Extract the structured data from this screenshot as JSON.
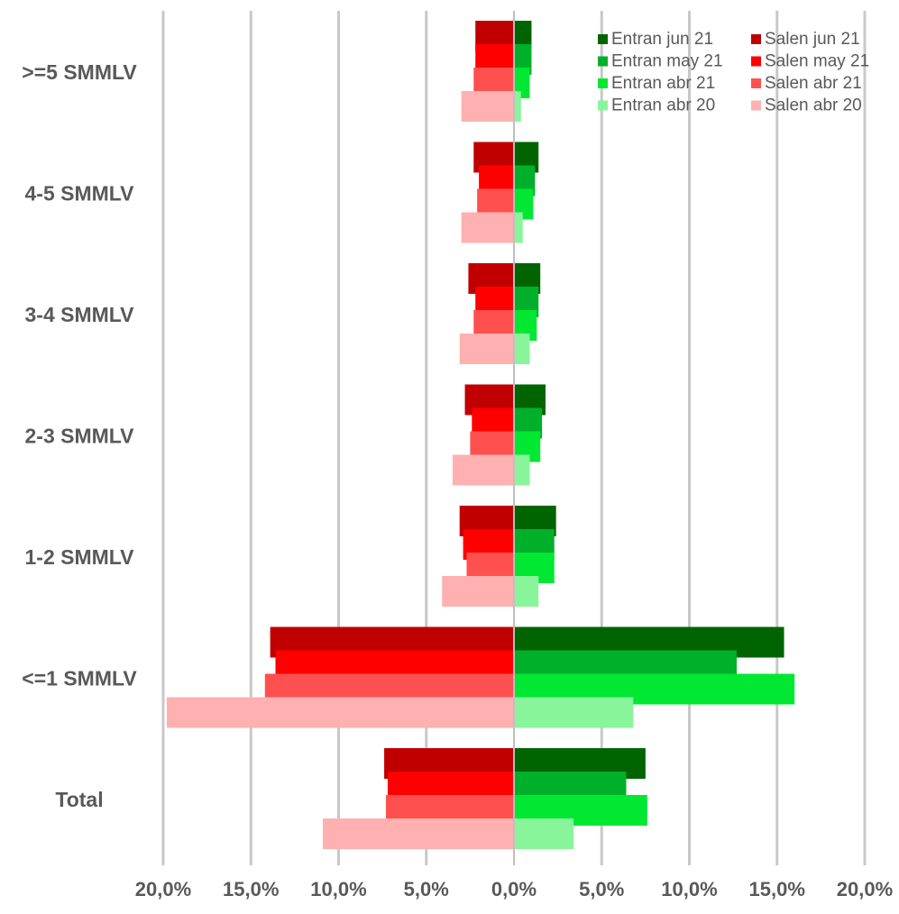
{
  "chart_data": {
    "type": "bar",
    "orientation": "horizontal",
    "categories": [
      ">=5 SMMLV",
      "4-5 SMMLV",
      "3-4 SMMLV",
      "2-3 SMMLV",
      "1-2 SMMLV",
      "<=1 SMMLV",
      "Total"
    ],
    "series": [
      {
        "name": "Entran jun 21",
        "color": "#006400",
        "values": [
          1.0,
          1.4,
          1.5,
          1.8,
          2.4,
          15.4,
          7.5
        ]
      },
      {
        "name": "Entran may 21",
        "color": "#00B02A",
        "values": [
          1.0,
          1.2,
          1.4,
          1.6,
          2.3,
          12.7,
          6.4
        ]
      },
      {
        "name": "Entran abr 21",
        "color": "#00E832",
        "values": [
          0.9,
          1.1,
          1.3,
          1.5,
          2.3,
          16.0,
          7.6
        ]
      },
      {
        "name": "Entran abr 20",
        "color": "#88F59A",
        "values": [
          0.4,
          0.5,
          0.9,
          0.9,
          1.4,
          6.8,
          3.4
        ]
      },
      {
        "name": "Salen jun 21",
        "color": "#C00000",
        "values": [
          2.2,
          2.3,
          2.6,
          2.8,
          3.1,
          13.9,
          7.4
        ]
      },
      {
        "name": "Salen may 21",
        "color": "#FF0000",
        "values": [
          2.2,
          2.0,
          2.2,
          2.4,
          2.9,
          13.6,
          7.2
        ]
      },
      {
        "name": "Salen abr 21",
        "color": "#FF5050",
        "values": [
          2.3,
          2.1,
          2.3,
          2.5,
          2.7,
          14.2,
          7.3
        ]
      },
      {
        "name": "Salen abr 20",
        "color": "#FFB0B0",
        "values": [
          3.0,
          3.0,
          3.1,
          3.5,
          4.1,
          19.8,
          10.9
        ]
      }
    ],
    "xlim": [
      -20,
      20
    ],
    "x_ticks": [
      "20,0%",
      "15,0%",
      "10,0%",
      "5,0%",
      "0,0%",
      "5,0%",
      "10,0%",
      "15,0%",
      "20,0%"
    ],
    "grid": true,
    "legend_position": "top-right",
    "legend_columns": 2
  }
}
